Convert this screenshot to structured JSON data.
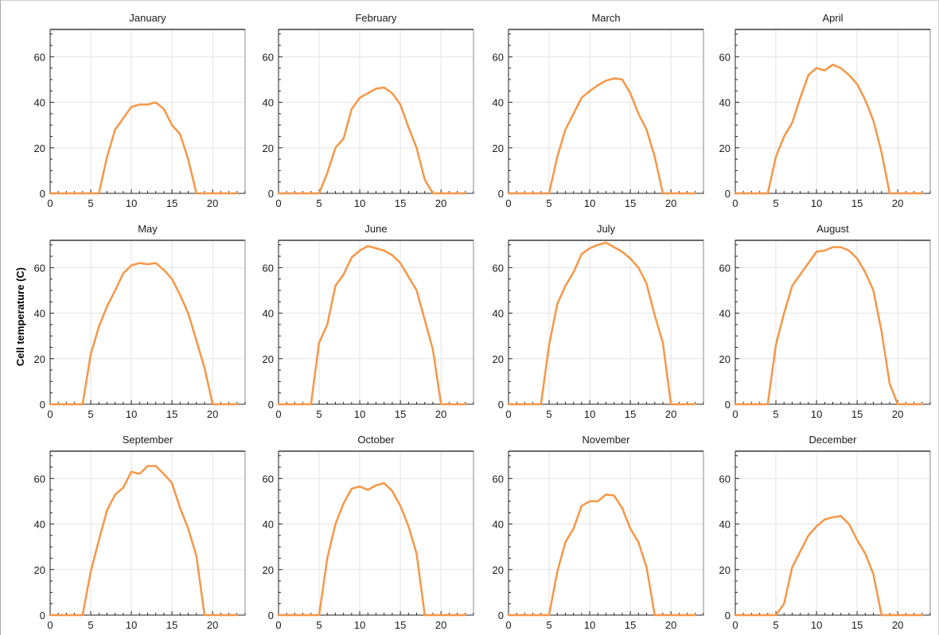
{
  "figure": {
    "ylabel": "Cell temperature (C)",
    "line_color": "#f79646"
  },
  "chart_data": [
    {
      "type": "line",
      "title": "January",
      "xlim": [
        0,
        24
      ],
      "ylim": [
        0,
        72
      ],
      "xticks": [
        0,
        5,
        10,
        15,
        20
      ],
      "yticks": [
        0,
        20,
        40,
        60
      ],
      "grid": true,
      "x": [
        0,
        1,
        2,
        3,
        4,
        5,
        6,
        7,
        8,
        9,
        10,
        11,
        12,
        13,
        14,
        15,
        16,
        17,
        18,
        19,
        20,
        21,
        22,
        23
      ],
      "series": [
        {
          "values": [
            0,
            0,
            0,
            0,
            0,
            0,
            0,
            16,
            28,
            33,
            38,
            39,
            39,
            40,
            37,
            30,
            26,
            15,
            0,
            0,
            0,
            0,
            0,
            0
          ]
        }
      ]
    },
    {
      "type": "line",
      "title": "February",
      "xlim": [
        0,
        24
      ],
      "ylim": [
        0,
        72
      ],
      "xticks": [
        0,
        5,
        10,
        15,
        20
      ],
      "yticks": [
        0,
        20,
        40,
        60
      ],
      "grid": true,
      "x": [
        0,
        1,
        2,
        3,
        4,
        5,
        6,
        7,
        8,
        9,
        10,
        11,
        12,
        13,
        14,
        15,
        16,
        17,
        18,
        19,
        20,
        21,
        22,
        23
      ],
      "series": [
        {
          "values": [
            0,
            0,
            0,
            0,
            0,
            0,
            9,
            20,
            24,
            37,
            42,
            44,
            46,
            46.5,
            44,
            39,
            29,
            20,
            6,
            0,
            0,
            0,
            0,
            0
          ]
        }
      ]
    },
    {
      "type": "line",
      "title": "March",
      "xlim": [
        0,
        24
      ],
      "ylim": [
        0,
        72
      ],
      "xticks": [
        0,
        5,
        10,
        15,
        20
      ],
      "yticks": [
        0,
        20,
        40,
        60
      ],
      "grid": true,
      "x": [
        0,
        1,
        2,
        3,
        4,
        5,
        6,
        7,
        8,
        9,
        10,
        11,
        12,
        13,
        14,
        15,
        16,
        17,
        18,
        19,
        20,
        21,
        22,
        23
      ],
      "series": [
        {
          "values": [
            0,
            0,
            0,
            0,
            0,
            0,
            16,
            28,
            35,
            42,
            45,
            47.5,
            49.5,
            50.5,
            50,
            44,
            35,
            28,
            16,
            0,
            0,
            0,
            0,
            0
          ]
        }
      ]
    },
    {
      "type": "line",
      "title": "April",
      "xlim": [
        0,
        24
      ],
      "ylim": [
        0,
        72
      ],
      "xticks": [
        0,
        5,
        10,
        15,
        20
      ],
      "yticks": [
        0,
        20,
        40,
        60
      ],
      "grid": true,
      "x": [
        0,
        1,
        2,
        3,
        4,
        5,
        6,
        7,
        8,
        9,
        10,
        11,
        12,
        13,
        14,
        15,
        16,
        17,
        18,
        19,
        20,
        21,
        22,
        23
      ],
      "series": [
        {
          "values": [
            0,
            0,
            0,
            0,
            0,
            16,
            25,
            31,
            42,
            52,
            55,
            54,
            56.5,
            55,
            52,
            48,
            41,
            32,
            18,
            0,
            0,
            0,
            0,
            0
          ]
        }
      ]
    },
    {
      "type": "line",
      "title": "May",
      "xlim": [
        0,
        24
      ],
      "ylim": [
        0,
        72
      ],
      "xticks": [
        0,
        5,
        10,
        15,
        20
      ],
      "yticks": [
        0,
        20,
        40,
        60
      ],
      "grid": true,
      "x": [
        0,
        1,
        2,
        3,
        4,
        5,
        6,
        7,
        8,
        9,
        10,
        11,
        12,
        13,
        14,
        15,
        16,
        17,
        18,
        19,
        20,
        21,
        22,
        23
      ],
      "series": [
        {
          "values": [
            0,
            0,
            0,
            0,
            0,
            22,
            34,
            43,
            50,
            57.5,
            61,
            62,
            61.5,
            62,
            59,
            55,
            48,
            40,
            28,
            16,
            0,
            0,
            0,
            0
          ]
        }
      ]
    },
    {
      "type": "line",
      "title": "June",
      "xlim": [
        0,
        24
      ],
      "ylim": [
        0,
        72
      ],
      "xticks": [
        0,
        5,
        10,
        15,
        20
      ],
      "yticks": [
        0,
        20,
        40,
        60
      ],
      "grid": true,
      "x": [
        0,
        1,
        2,
        3,
        4,
        5,
        6,
        7,
        8,
        9,
        10,
        11,
        12,
        13,
        14,
        15,
        16,
        17,
        18,
        19,
        20,
        21,
        22,
        23
      ],
      "series": [
        {
          "values": [
            0,
            0,
            0,
            0,
            0,
            27,
            35,
            52,
            57,
            64.5,
            67.5,
            69.5,
            68.5,
            67.5,
            65.5,
            62,
            56,
            50,
            37,
            24,
            0,
            0,
            0,
            0
          ]
        }
      ]
    },
    {
      "type": "line",
      "title": "July",
      "xlim": [
        0,
        24
      ],
      "ylim": [
        0,
        72
      ],
      "xticks": [
        0,
        5,
        10,
        15,
        20
      ],
      "yticks": [
        0,
        20,
        40,
        60
      ],
      "grid": true,
      "x": [
        0,
        1,
        2,
        3,
        4,
        5,
        6,
        7,
        8,
        9,
        10,
        11,
        12,
        13,
        14,
        15,
        16,
        17,
        18,
        19,
        20,
        21,
        22,
        23
      ],
      "series": [
        {
          "values": [
            0,
            0,
            0,
            0,
            0,
            26,
            44,
            52,
            58,
            66,
            68.5,
            70,
            71,
            69,
            67,
            64,
            60,
            53,
            39,
            27,
            0,
            0,
            0,
            0
          ]
        }
      ]
    },
    {
      "type": "line",
      "title": "August",
      "xlim": [
        0,
        24
      ],
      "ylim": [
        0,
        72
      ],
      "xticks": [
        0,
        5,
        10,
        15,
        20
      ],
      "yticks": [
        0,
        20,
        40,
        60
      ],
      "grid": true,
      "x": [
        0,
        1,
        2,
        3,
        4,
        5,
        6,
        7,
        8,
        9,
        10,
        11,
        12,
        13,
        14,
        15,
        16,
        17,
        18,
        19,
        20,
        21,
        22,
        23
      ],
      "series": [
        {
          "values": [
            0,
            0,
            0,
            0,
            0,
            26,
            40,
            52,
            57,
            62,
            67,
            67.5,
            69,
            69,
            67.5,
            64,
            58,
            50,
            32,
            9,
            0,
            0,
            0,
            0
          ]
        }
      ]
    },
    {
      "type": "line",
      "title": "September",
      "xlim": [
        0,
        24
      ],
      "ylim": [
        0,
        72
      ],
      "xticks": [
        0,
        5,
        10,
        15,
        20
      ],
      "yticks": [
        0,
        20,
        40,
        60
      ],
      "grid": true,
      "x": [
        0,
        1,
        2,
        3,
        4,
        5,
        6,
        7,
        8,
        9,
        10,
        11,
        12,
        13,
        14,
        15,
        16,
        17,
        18,
        19,
        20,
        21,
        22,
        23
      ],
      "series": [
        {
          "values": [
            0,
            0,
            0,
            0,
            0,
            19,
            33,
            46,
            53,
            56,
            63,
            62,
            65.5,
            65.5,
            62,
            58,
            47,
            38,
            26,
            0,
            0,
            0,
            0,
            0
          ]
        }
      ]
    },
    {
      "type": "line",
      "title": "October",
      "xlim": [
        0,
        24
      ],
      "ylim": [
        0,
        72
      ],
      "xticks": [
        0,
        5,
        10,
        15,
        20
      ],
      "yticks": [
        0,
        20,
        40,
        60
      ],
      "grid": true,
      "x": [
        0,
        1,
        2,
        3,
        4,
        5,
        6,
        7,
        8,
        9,
        10,
        11,
        12,
        13,
        14,
        15,
        16,
        17,
        18,
        19,
        20,
        21,
        22,
        23
      ],
      "series": [
        {
          "values": [
            0,
            0,
            0,
            0,
            0,
            0,
            25,
            40,
            49,
            55.5,
            56.5,
            55,
            57,
            58,
            54.5,
            48,
            39,
            27,
            0,
            0,
            0,
            0,
            0,
            0
          ]
        }
      ]
    },
    {
      "type": "line",
      "title": "November",
      "xlim": [
        0,
        24
      ],
      "ylim": [
        0,
        72
      ],
      "xticks": [
        0,
        5,
        10,
        15,
        20
      ],
      "yticks": [
        0,
        20,
        40,
        60
      ],
      "grid": true,
      "x": [
        0,
        1,
        2,
        3,
        4,
        5,
        6,
        7,
        8,
        9,
        10,
        11,
        12,
        13,
        14,
        15,
        16,
        17,
        18,
        19,
        20,
        21,
        22,
        23
      ],
      "series": [
        {
          "values": [
            0,
            0,
            0,
            0,
            0,
            0,
            19,
            32,
            38,
            48,
            50,
            50,
            53,
            52.5,
            47,
            38,
            32,
            21,
            0,
            0,
            0,
            0,
            0,
            0
          ]
        }
      ]
    },
    {
      "type": "line",
      "title": "December",
      "xlim": [
        0,
        24
      ],
      "ylim": [
        0,
        72
      ],
      "xticks": [
        0,
        5,
        10,
        15,
        20
      ],
      "yticks": [
        0,
        20,
        40,
        60
      ],
      "grid": true,
      "x": [
        0,
        1,
        2,
        3,
        4,
        5,
        6,
        7,
        8,
        9,
        10,
        11,
        12,
        13,
        14,
        15,
        16,
        17,
        18,
        19,
        20,
        21,
        22,
        23
      ],
      "series": [
        {
          "values": [
            0,
            0,
            0,
            0,
            0,
            0,
            5,
            21,
            28,
            35,
            39,
            42,
            43,
            43.5,
            40,
            33,
            27,
            18,
            0,
            0,
            0,
            0,
            0,
            0
          ]
        }
      ]
    }
  ]
}
